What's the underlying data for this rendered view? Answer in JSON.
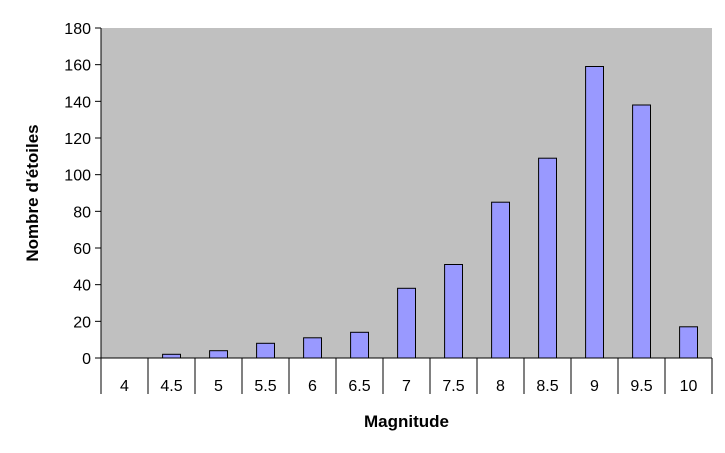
{
  "chart_data": {
    "type": "bar",
    "title": "",
    "xlabel": "Magnitude",
    "ylabel": "Nombre d'étoiles",
    "categories": [
      "4",
      "4.5",
      "5",
      "5.5",
      "6",
      "6.5",
      "7",
      "7.5",
      "8",
      "8.5",
      "9",
      "9.5",
      "10"
    ],
    "values": [
      0,
      2,
      4,
      8,
      11,
      14,
      38,
      51,
      85,
      109,
      159,
      138,
      17
    ],
    "ylim": [
      0,
      180
    ],
    "yticks": [
      0,
      20,
      40,
      60,
      80,
      100,
      120,
      140,
      160,
      180
    ],
    "grid": false,
    "legend": "none",
    "colors": {
      "plot_background": "#c0c0c0",
      "bar_fill": "#9999ff",
      "bar_stroke": "#000000"
    }
  }
}
